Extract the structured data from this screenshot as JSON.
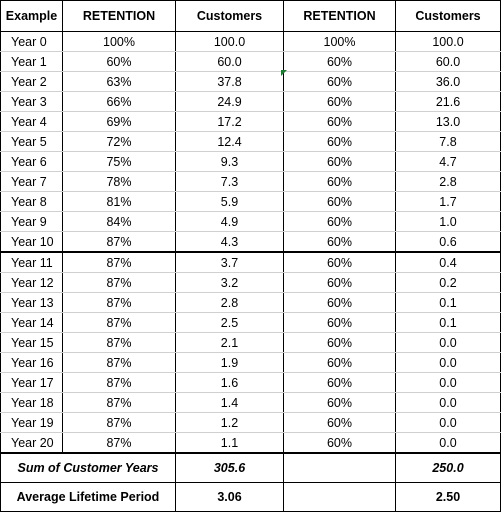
{
  "headers": [
    "Example",
    "RETENTION",
    "Customers",
    "RETENTION",
    "Customers"
  ],
  "rows": [
    [
      "Year 0",
      "100%",
      "100.0",
      "100%",
      "100.0"
    ],
    [
      "Year 1",
      "60%",
      "60.0",
      "60%",
      "60.0"
    ],
    [
      "Year 2",
      "63%",
      "37.8",
      "60%",
      "36.0"
    ],
    [
      "Year 3",
      "66%",
      "24.9",
      "60%",
      "21.6"
    ],
    [
      "Year 4",
      "69%",
      "17.2",
      "60%",
      "13.0"
    ],
    [
      "Year 5",
      "72%",
      "12.4",
      "60%",
      "7.8"
    ],
    [
      "Year 6",
      "75%",
      "9.3",
      "60%",
      "4.7"
    ],
    [
      "Year 7",
      "78%",
      "7.3",
      "60%",
      "2.8"
    ],
    [
      "Year 8",
      "81%",
      "5.9",
      "60%",
      "1.7"
    ],
    [
      "Year 9",
      "84%",
      "4.9",
      "60%",
      "1.0"
    ],
    [
      "Year 10",
      "87%",
      "4.3",
      "60%",
      "0.6"
    ],
    [
      "Year 11",
      "87%",
      "3.7",
      "60%",
      "0.4"
    ],
    [
      "Year 12",
      "87%",
      "3.2",
      "60%",
      "0.2"
    ],
    [
      "Year 13",
      "87%",
      "2.8",
      "60%",
      "0.1"
    ],
    [
      "Year 14",
      "87%",
      "2.5",
      "60%",
      "0.1"
    ],
    [
      "Year 15",
      "87%",
      "2.1",
      "60%",
      "0.0"
    ],
    [
      "Year 16",
      "87%",
      "1.9",
      "60%",
      "0.0"
    ],
    [
      "Year 17",
      "87%",
      "1.6",
      "60%",
      "0.0"
    ],
    [
      "Year 18",
      "87%",
      "1.4",
      "60%",
      "0.0"
    ],
    [
      "Year 19",
      "87%",
      "1.2",
      "60%",
      "0.0"
    ],
    [
      "Year 20",
      "87%",
      "1.1",
      "60%",
      "0.0"
    ]
  ],
  "sum_row": {
    "label": "Sum of Customer Years",
    "value_a": "305.6",
    "value_b": "250.0"
  },
  "avg_row": {
    "label": "Average Lifetime Period",
    "value_a": "3.06",
    "value_b": "2.50"
  },
  "colors": {
    "grid_major": "#000000",
    "grid_minor": "#d0d0d0",
    "cell_marker": "#1e7b34"
  }
}
